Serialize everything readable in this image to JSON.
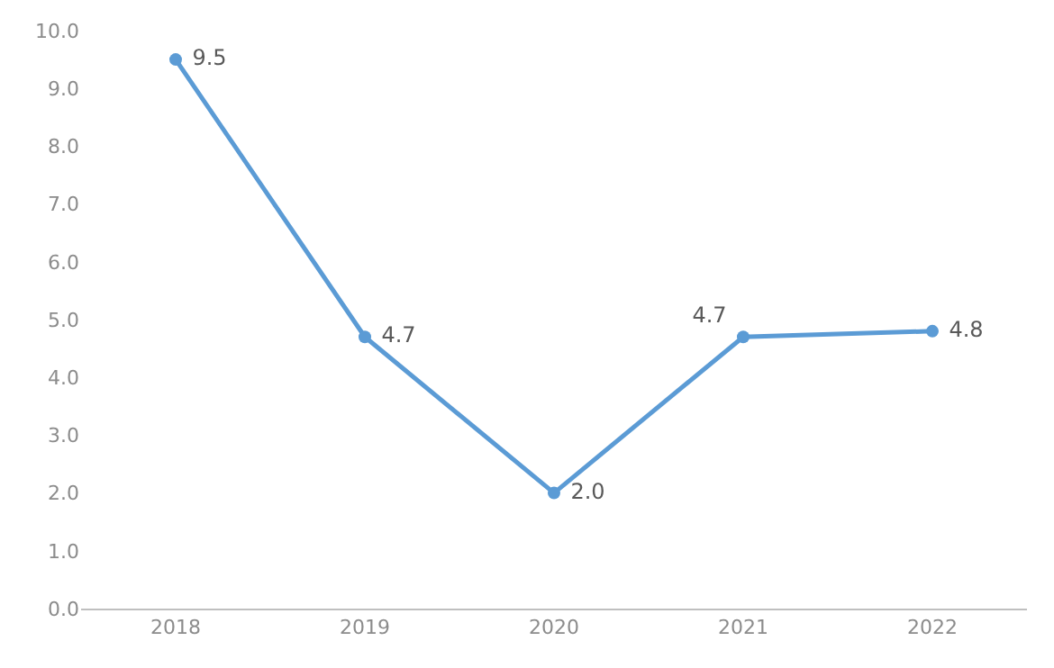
{
  "chart_data": {
    "type": "line",
    "categories": [
      "2018",
      "2019",
      "2020",
      "2021",
      "2022"
    ],
    "series": [
      {
        "color": "#5b9bd5",
        "values": [
          9.5,
          4.7,
          2.0,
          4.7,
          4.8
        ],
        "value_labels": [
          "9.5",
          "4.7",
          "2.0",
          "4.7",
          "4.8"
        ]
      }
    ],
    "ylim": [
      0,
      10
    ],
    "yticks": [
      {
        "value": 0,
        "label": "0.0"
      },
      {
        "value": 1,
        "label": "1.0"
      },
      {
        "value": 2,
        "label": "2.0"
      },
      {
        "value": 3,
        "label": "3.0"
      },
      {
        "value": 4,
        "label": "4.0"
      },
      {
        "value": 5,
        "label": "5.0"
      },
      {
        "value": 6,
        "label": "6.0"
      },
      {
        "value": 7,
        "label": "7.0"
      },
      {
        "value": 8,
        "label": "8.0"
      },
      {
        "value": 9,
        "label": "9.0"
      },
      {
        "value": 10,
        "label": "10.0"
      }
    ],
    "marker": "circle",
    "line_style": "solid",
    "legend": false
  }
}
